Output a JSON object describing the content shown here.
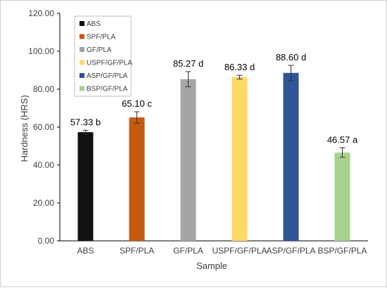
{
  "chart_data": {
    "type": "bar",
    "title": "",
    "xlabel": "Sample",
    "ylabel": "Hardness (HRS)",
    "ylim": [
      0,
      120
    ],
    "yticks": [
      "0.00",
      "20.00",
      "40.00",
      "60.00",
      "80.00",
      "100.00",
      "120.00"
    ],
    "categories": [
      "ABS",
      "SPF/PLA",
      "GF/PLA",
      "USPF/GF/PLA",
      "ASP/GF/PLA",
      "BSP/GF/PLA"
    ],
    "values": [
      57.33,
      65.1,
      85.27,
      86.33,
      88.6,
      46.57
    ],
    "errors": [
      1.0,
      3.0,
      4.0,
      1.0,
      4.0,
      2.5
    ],
    "data_labels": [
      "57.33 b",
      "65.10 c",
      "85.27 d",
      "86.33 d",
      "88.60 d",
      "46.57 a"
    ],
    "colors": [
      "#111111",
      "#c55a11",
      "#a5a5a5",
      "#ffd966",
      "#2f5597",
      "#a9d18e"
    ],
    "legend": {
      "placement": "top-left",
      "entries": [
        "ABS",
        "SPF/PLA",
        "GF/PLA",
        "USPF/GF/PLA",
        "ASP/GF/PLA",
        "BSP/GF/PLA"
      ]
    },
    "grid": false
  }
}
